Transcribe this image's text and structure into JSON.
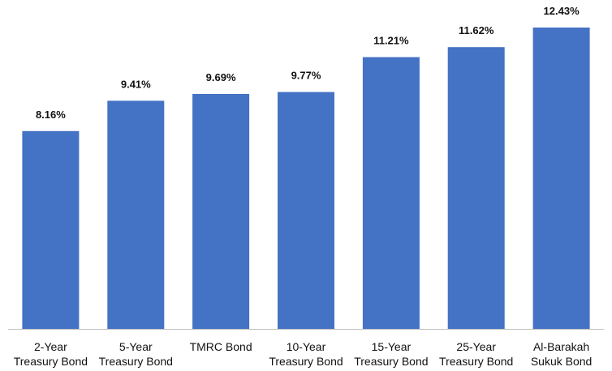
{
  "chart_data": {
    "type": "bar",
    "categories": [
      [
        "2-Year",
        "Treasury Bond"
      ],
      [
        "5-Year",
        "Treasury Bond"
      ],
      [
        "TMRC Bond"
      ],
      [
        "10-Year",
        "Treasury Bond"
      ],
      [
        "15-Year",
        "Treasury Bond"
      ],
      [
        "25-Year",
        "Treasury Bond"
      ],
      [
        "Al-Barakah",
        "Sukuk Bond"
      ]
    ],
    "values": [
      8.16,
      9.41,
      9.69,
      9.77,
      11.21,
      11.62,
      12.43
    ],
    "data_labels": [
      "8.16%",
      "9.41%",
      "9.69%",
      "9.77%",
      "11.21%",
      "11.62%",
      "12.43%"
    ],
    "unit": "%",
    "title": "",
    "xlabel": "",
    "ylabel": "",
    "ylim": [
      0,
      12.43
    ],
    "grid": false,
    "legend": "none",
    "bar_color": "#4472C4",
    "axis_color": "#BFBFBF"
  }
}
